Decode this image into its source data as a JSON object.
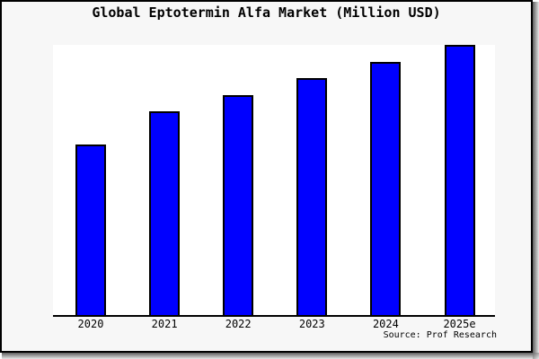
{
  "title": "Global Eptotermin Alfa Market (Million USD)",
  "source": "Source: Prof Research",
  "colors": {
    "bar_fill": "#0000ff",
    "bar_border": "#000000",
    "canvas_bg": "#f7f7f7",
    "plot_bg": "#ffffff",
    "frame_border": "#000000",
    "text": "#000000"
  },
  "chart_data": {
    "type": "bar",
    "title": "Global Eptotermin Alfa Market (Million USD)",
    "categories": [
      "2020",
      "2021",
      "2022",
      "2023",
      "2024",
      "2025e"
    ],
    "values": [
      63,
      75.5,
      81.4,
      87.7,
      93.7,
      100
    ],
    "values_unit": "relative bar height, tallest bar (2025e) = 100; no numeric y-axis labels shown in chart",
    "xlabel": "",
    "ylabel": "",
    "ylim": [
      0,
      100
    ],
    "grid": false,
    "legend": false,
    "y_axis_visible": false,
    "source": "Source: Prof Research"
  }
}
